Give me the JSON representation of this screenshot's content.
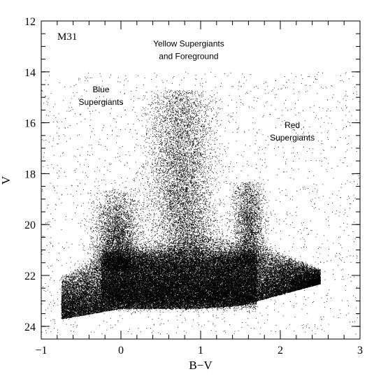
{
  "chart_data": {
    "type": "scatter",
    "title": "",
    "xlabel": "B−V",
    "ylabel": "V",
    "xlim": [
      -1,
      3
    ],
    "ylim": [
      24.5,
      12
    ],
    "y_inverted": true,
    "grid": false,
    "legend": "none",
    "panel_label": "M31",
    "xticks": [
      -1,
      0,
      1,
      2,
      3
    ],
    "yticks": [
      12,
      14,
      16,
      18,
      20,
      22,
      24
    ],
    "xtick_labels": [
      "−1",
      "0",
      "1",
      "2",
      "3"
    ],
    "ytick_labels": [
      "12",
      "14",
      "16",
      "18",
      "20",
      "22",
      "24"
    ],
    "annotations": [
      {
        "lines": [
          "Blue",
          "Supergiants"
        ],
        "x": -0.25,
        "y": 14.8
      },
      {
        "lines": [
          "Yellow Supergiants",
          "and Foreground"
        ],
        "x": 0.85,
        "y": 13.0
      },
      {
        "lines": [
          "Red",
          "Supergiants"
        ],
        "x": 2.15,
        "y": 16.2
      }
    ],
    "series": [
      {
        "point_color": "#000000",
        "density_regions": [
          {
            "region": "main-sequence-band",
            "x_range": [
              -0.8,
              2.5
            ],
            "y_range": [
              20.5,
              24.2
            ],
            "density": "very-high"
          },
          {
            "region": "blue-plume",
            "x_range": [
              -0.3,
              0.2
            ],
            "y_range": [
              18.5,
              22
            ],
            "density": "high"
          },
          {
            "region": "yellow-plume",
            "x_range": [
              0.4,
              1.1
            ],
            "y_range": [
              14.8,
              21
            ],
            "density": "medium"
          },
          {
            "region": "red-plume",
            "x_range": [
              1.4,
              1.8
            ],
            "y_range": [
              18.5,
              21.5
            ],
            "density": "medium"
          },
          {
            "region": "field-scatter",
            "x_range": [
              -1,
              3
            ],
            "y_range": [
              12,
              24.5
            ],
            "density": "low"
          }
        ]
      }
    ]
  }
}
